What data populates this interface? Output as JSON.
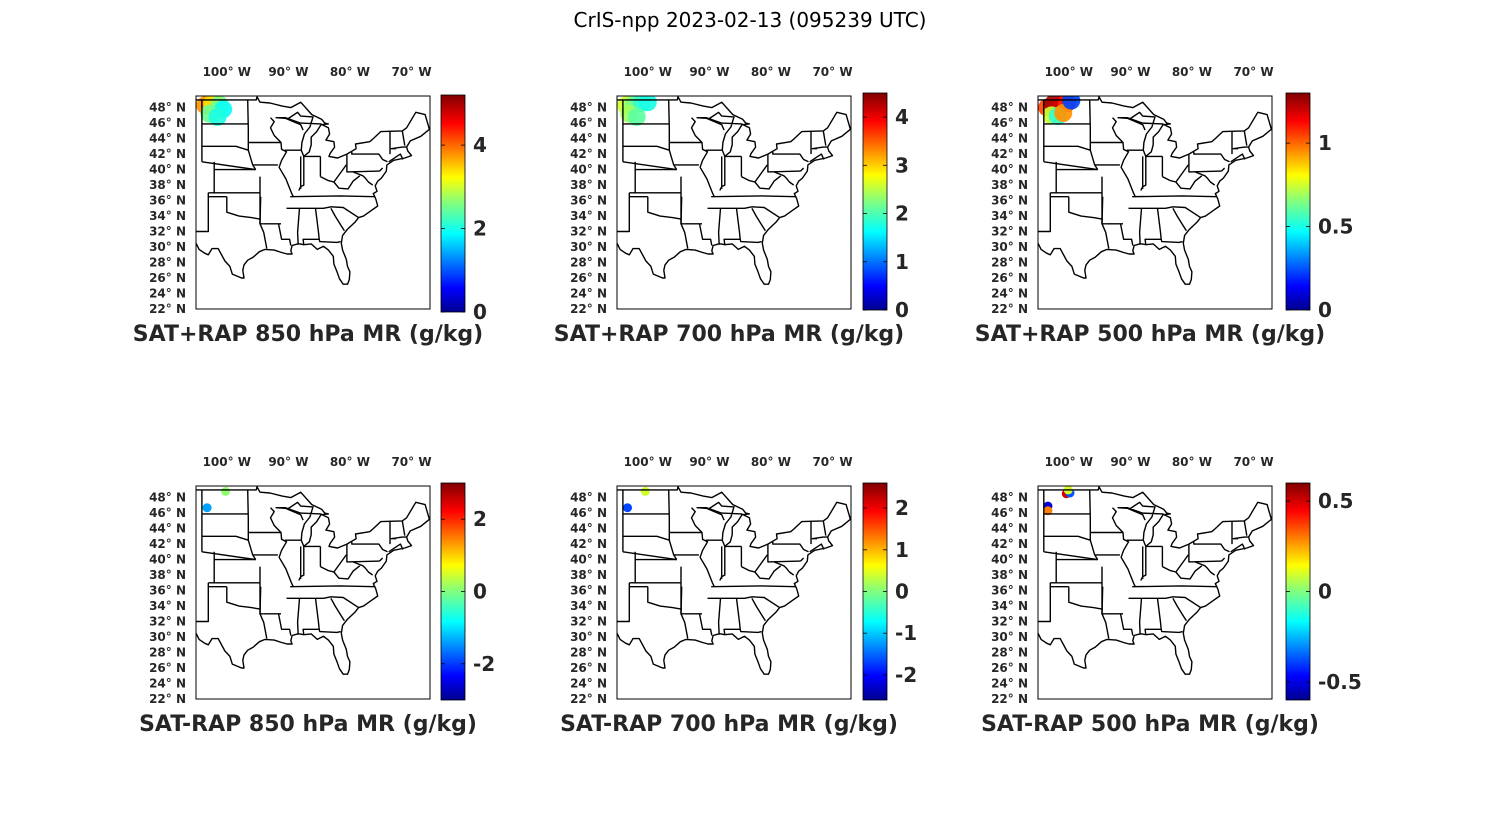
{
  "figure": {
    "title": "CrIS-npp 2023-02-13 (095239 UTC)",
    "lon_ticks": [
      "100",
      "90",
      "80",
      "70"
    ],
    "lat_ticks": [
      "48",
      "46",
      "44",
      "42",
      "40",
      "38",
      "36",
      "34",
      "32",
      "30",
      "28",
      "26",
      "24",
      "22"
    ],
    "lon_hemisphere": "W",
    "lat_hemisphere": "N",
    "degree_symbol": "°",
    "colormap": "jet"
  },
  "panels": [
    {
      "title": "SAT+RAP 850 hPa MR (g/kg)",
      "colorbar": {
        "min": 0,
        "max": 5.2,
        "ticks": [
          "0",
          "2",
          "4"
        ],
        "tick_values": [
          0,
          2,
          4
        ]
      },
      "data": [
        {
          "lon": -103.5,
          "lat": 48.3,
          "value": 3.8
        },
        {
          "lon": -102.3,
          "lat": 48.6,
          "value": 3.4
        },
        {
          "lon": -101.2,
          "lat": 48.4,
          "value": 2.6
        },
        {
          "lon": -100.6,
          "lat": 47.8,
          "value": 2.0
        },
        {
          "lon": -102.8,
          "lat": 47.2,
          "value": 2.5
        },
        {
          "lon": -101.5,
          "lat": 46.8,
          "value": 2.1
        }
      ]
    },
    {
      "title": "SAT+RAP 700 hPa MR (g/kg)",
      "colorbar": {
        "min": 0,
        "max": 4.5,
        "ticks": [
          "0",
          "1",
          "2",
          "3",
          "4"
        ],
        "tick_values": [
          0,
          1,
          2,
          3,
          4
        ]
      },
      "data": [
        {
          "lon": -103.5,
          "lat": 48.3,
          "value": 2.6
        },
        {
          "lon": -102.3,
          "lat": 48.4,
          "value": 2.2
        },
        {
          "lon": -101.0,
          "lat": 48.6,
          "value": 1.9
        },
        {
          "lon": -100.0,
          "lat": 48.7,
          "value": 1.8
        },
        {
          "lon": -103.0,
          "lat": 47.2,
          "value": 2.4
        },
        {
          "lon": -101.8,
          "lat": 46.8,
          "value": 2.1
        }
      ]
    },
    {
      "title": "SAT+RAP 500 hPa MR (g/kg)",
      "colorbar": {
        "min": 0,
        "max": 1.3,
        "ticks": [
          "0",
          "0.5",
          "1"
        ],
        "tick_values": [
          0,
          0.5,
          1
        ]
      },
      "data": [
        {
          "lon": -103.5,
          "lat": 48.0,
          "value": 1.05
        },
        {
          "lon": -102.5,
          "lat": 48.5,
          "value": 1.25
        },
        {
          "lon": -101.3,
          "lat": 48.3,
          "value": 1.2
        },
        {
          "lon": -100.3,
          "lat": 48.6,
          "value": 1.1
        },
        {
          "lon": -102.8,
          "lat": 47.0,
          "value": 0.75
        },
        {
          "lon": -101.8,
          "lat": 46.9,
          "value": 0.55
        },
        {
          "lon": -100.9,
          "lat": 47.3,
          "value": 0.95
        },
        {
          "lon": -99.6,
          "lat": 48.9,
          "value": 0.25
        }
      ]
    },
    {
      "title": "SAT-RAP 850 hPa MR (g/kg)",
      "colorbar": {
        "min": -3,
        "max": 3,
        "ticks": [
          "-2",
          "0",
          "2"
        ],
        "tick_values": [
          -2,
          0,
          2
        ]
      },
      "data": [
        {
          "lon": -103.2,
          "lat": 46.7,
          "value": -1.3
        },
        {
          "lon": -100.2,
          "lat": 48.8,
          "value": 0.1
        }
      ]
    },
    {
      "title": "SAT-RAP 700 hPa MR (g/kg)",
      "colorbar": {
        "min": -2.6,
        "max": 2.6,
        "ticks": [
          "-2",
          "-1",
          "0",
          "1",
          "2"
        ],
        "tick_values": [
          -2,
          -1,
          0,
          1,
          2
        ]
      },
      "data": [
        {
          "lon": -103.3,
          "lat": 46.7,
          "value": -1.6
        },
        {
          "lon": -100.4,
          "lat": 48.8,
          "value": 0.4
        }
      ]
    },
    {
      "title": "SAT-RAP 500 hPa MR (g/kg)",
      "colorbar": {
        "min": -0.6,
        "max": 0.6,
        "ticks": [
          "-0.5",
          "0",
          "0.5"
        ],
        "tick_values": [
          -0.5,
          0,
          0.5
        ]
      },
      "data": [
        {
          "lon": -103.4,
          "lat": 46.9,
          "value": -0.5
        },
        {
          "lon": -103.4,
          "lat": 46.3,
          "value": 0.3
        },
        {
          "lon": -100.4,
          "lat": 48.5,
          "value": 0.5
        },
        {
          "lon": -99.8,
          "lat": 48.6,
          "value": -0.35
        },
        {
          "lon": -100.1,
          "lat": 49.0,
          "value": 0.1
        }
      ]
    }
  ]
}
